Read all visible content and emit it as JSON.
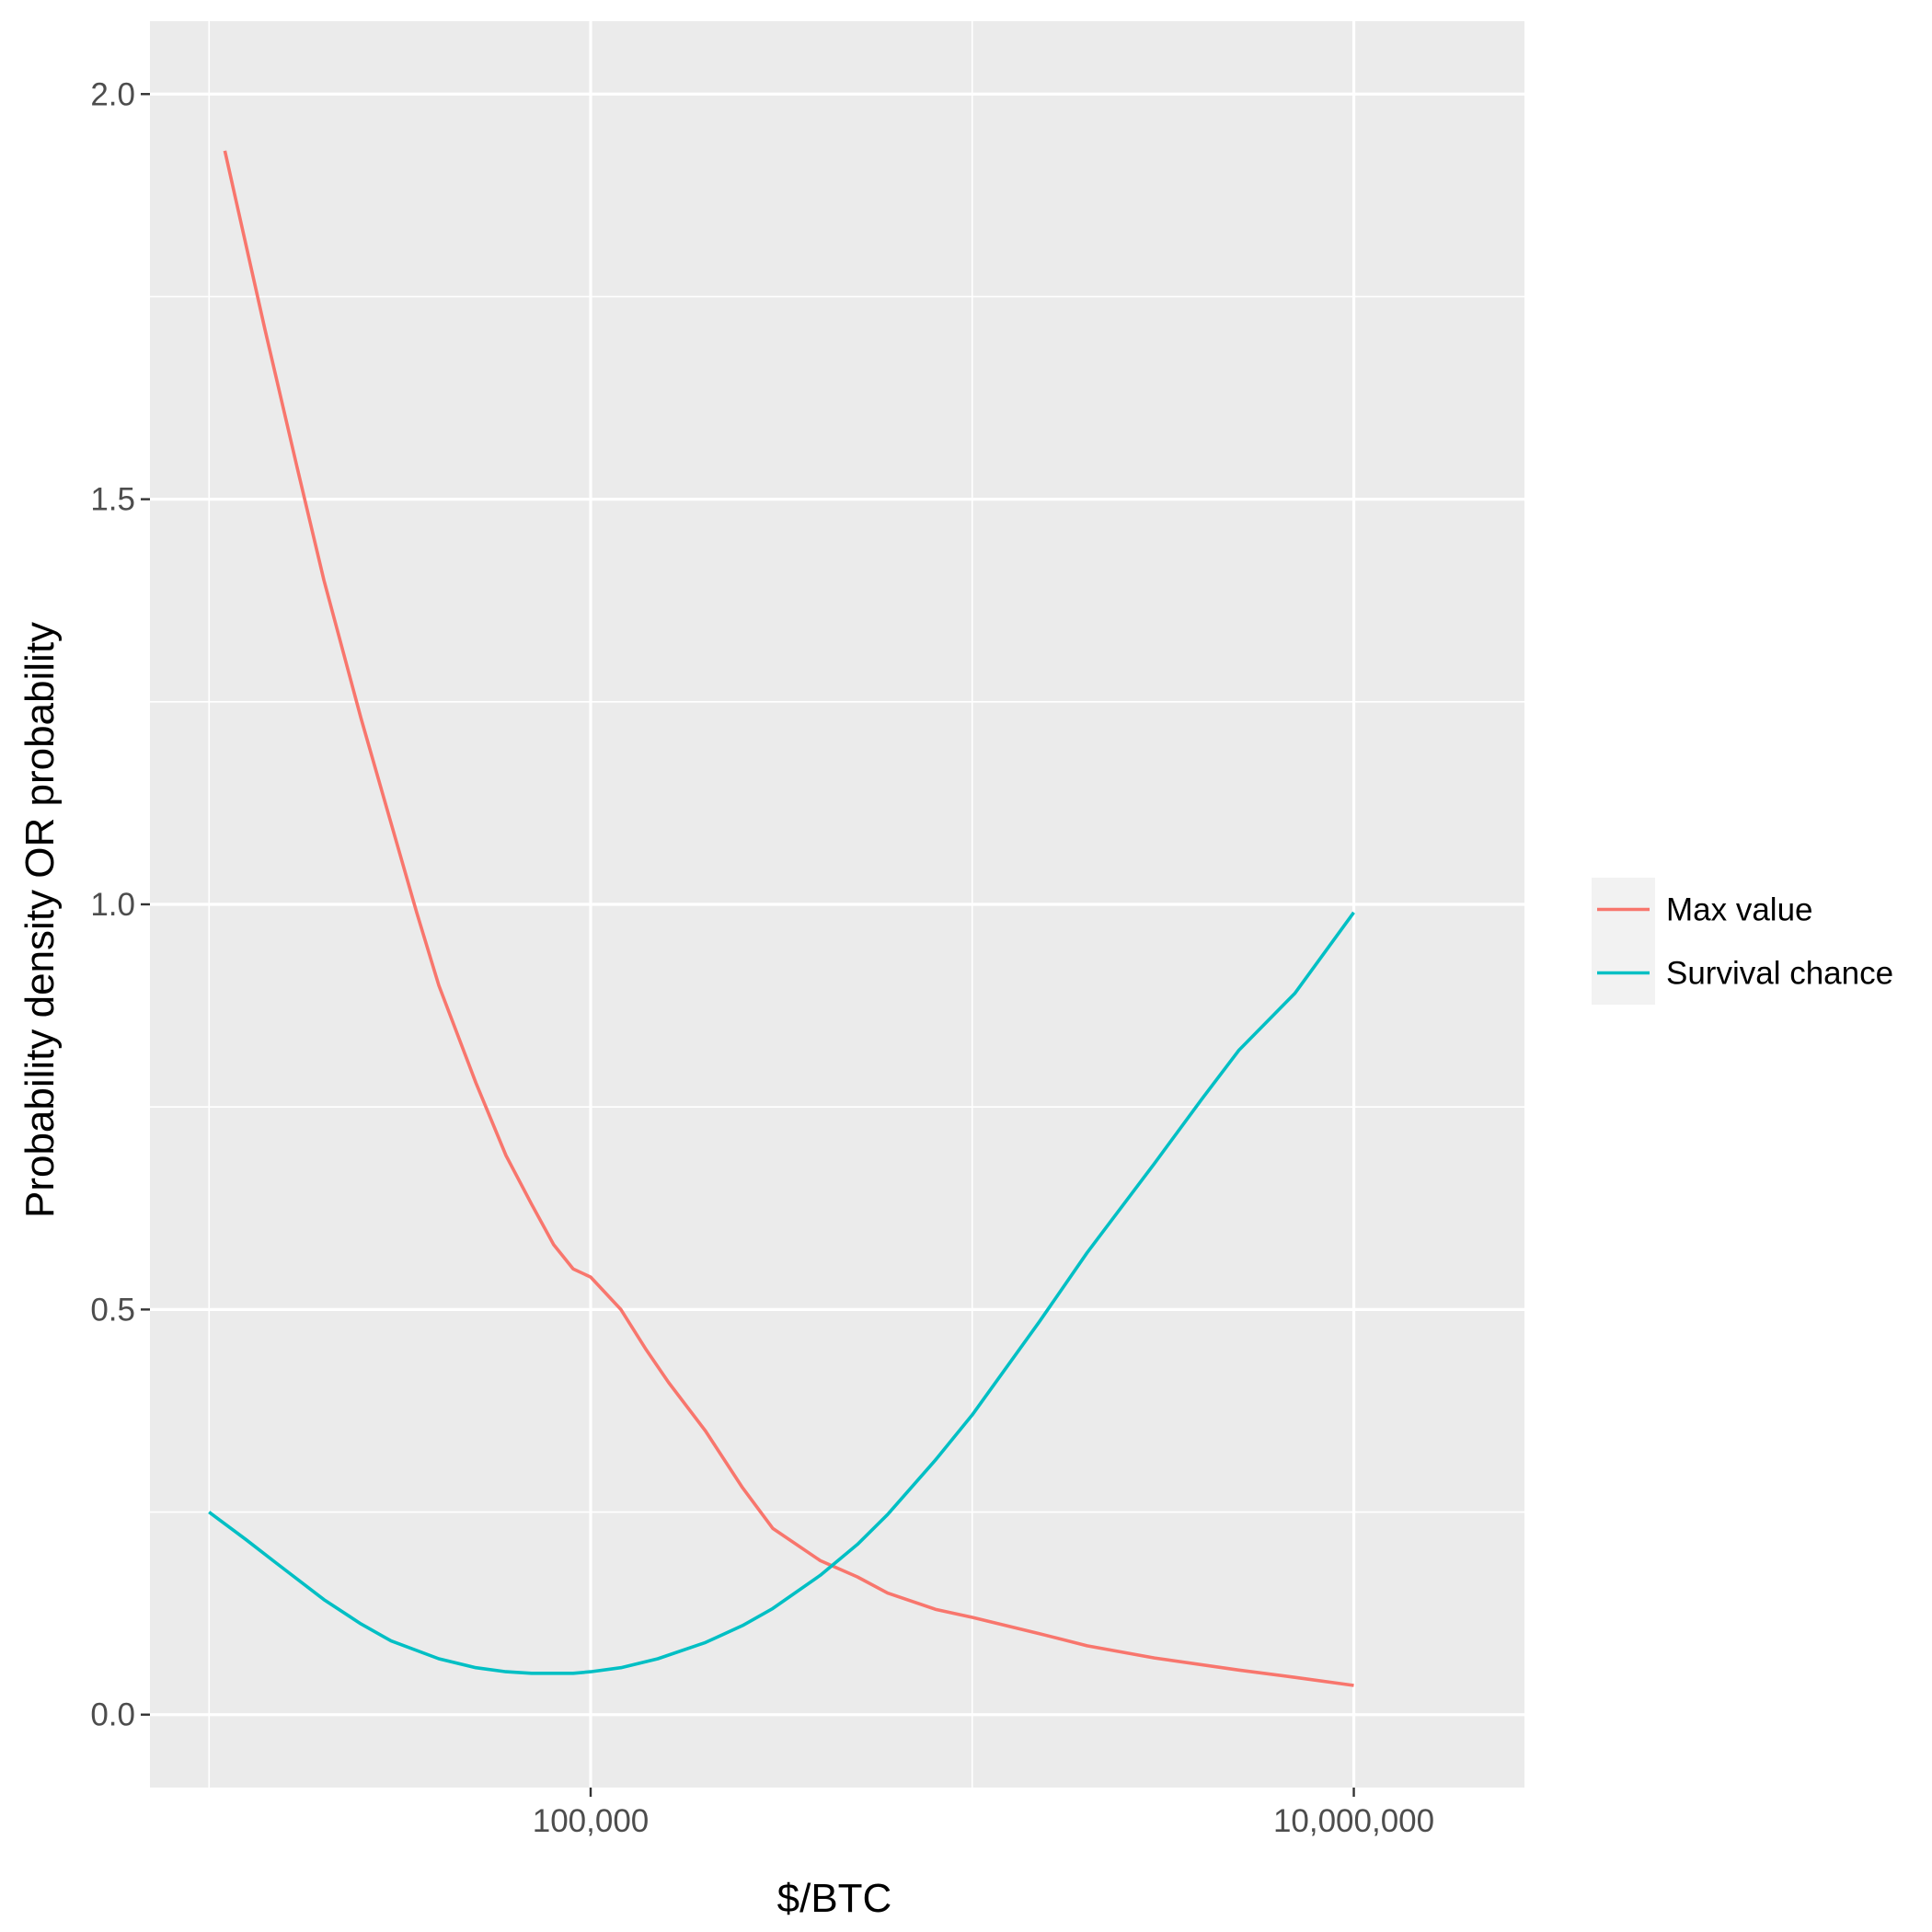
{
  "chart_data": {
    "type": "line",
    "title": "",
    "xlabel": "$/BTC",
    "ylabel": "Probability density OR probability",
    "x_scale": "log10",
    "xlim": [
      7000,
      28000000
    ],
    "ylim": [
      -0.09,
      2.09
    ],
    "x_ticks": [
      {
        "value": 100000,
        "label": "100,000"
      },
      {
        "value": 10000000,
        "label": "10,000,000"
      }
    ],
    "x_minor_gridlines": [
      10000,
      1000000
    ],
    "y_ticks": [
      {
        "value": 0.0,
        "label": "0.0"
      },
      {
        "value": 0.5,
        "label": "0.5"
      },
      {
        "value": 1.0,
        "label": "1.0"
      },
      {
        "value": 1.5,
        "label": "1.5"
      },
      {
        "value": 2.0,
        "label": "2.0"
      }
    ],
    "y_minor_gridlines": [
      0.25,
      0.75,
      1.25,
      1.75
    ],
    "grid": true,
    "legend_position": "right",
    "background_color": "#ebebeb",
    "grid_color": "#ffffff",
    "series": [
      {
        "name": "Max value",
        "color": "#f8766d",
        "x": [
          11000,
          14000,
          17000,
          20000,
          25000,
          30000,
          35000,
          40000,
          50000,
          60000,
          70000,
          80000,
          90000,
          100000,
          120000,
          140000,
          160000,
          200000,
          250000,
          300000,
          400000,
          500000,
          600000,
          800000,
          1000000,
          1500000,
          2000000,
          3000000,
          5000000,
          7000000,
          10000000
        ],
        "values": [
          1.93,
          1.71,
          1.54,
          1.4,
          1.23,
          1.1,
          0.99,
          0.9,
          0.78,
          0.69,
          0.63,
          0.58,
          0.55,
          0.54,
          0.5,
          0.45,
          0.41,
          0.35,
          0.28,
          0.23,
          0.19,
          0.17,
          0.15,
          0.13,
          0.12,
          0.1,
          0.085,
          0.07,
          0.055,
          0.046,
          0.036
        ]
      },
      {
        "name": "Survival chance",
        "color": "#00bfc4",
        "x": [
          10000,
          12500,
          15000,
          20000,
          25000,
          30000,
          40000,
          50000,
          60000,
          70000,
          80000,
          90000,
          100000,
          120000,
          150000,
          200000,
          250000,
          300000,
          400000,
          500000,
          600000,
          800000,
          1000000,
          1500000,
          2000000,
          3000000,
          4000000,
          5000000,
          7000000,
          10000000
        ],
        "values": [
          0.25,
          0.216,
          0.187,
          0.142,
          0.112,
          0.091,
          0.069,
          0.058,
          0.053,
          0.051,
          0.051,
          0.051,
          0.053,
          0.058,
          0.069,
          0.089,
          0.11,
          0.131,
          0.172,
          0.21,
          0.247,
          0.314,
          0.37,
          0.485,
          0.57,
          0.68,
          0.76,
          0.82,
          0.89,
          0.99
        ]
      }
    ]
  }
}
